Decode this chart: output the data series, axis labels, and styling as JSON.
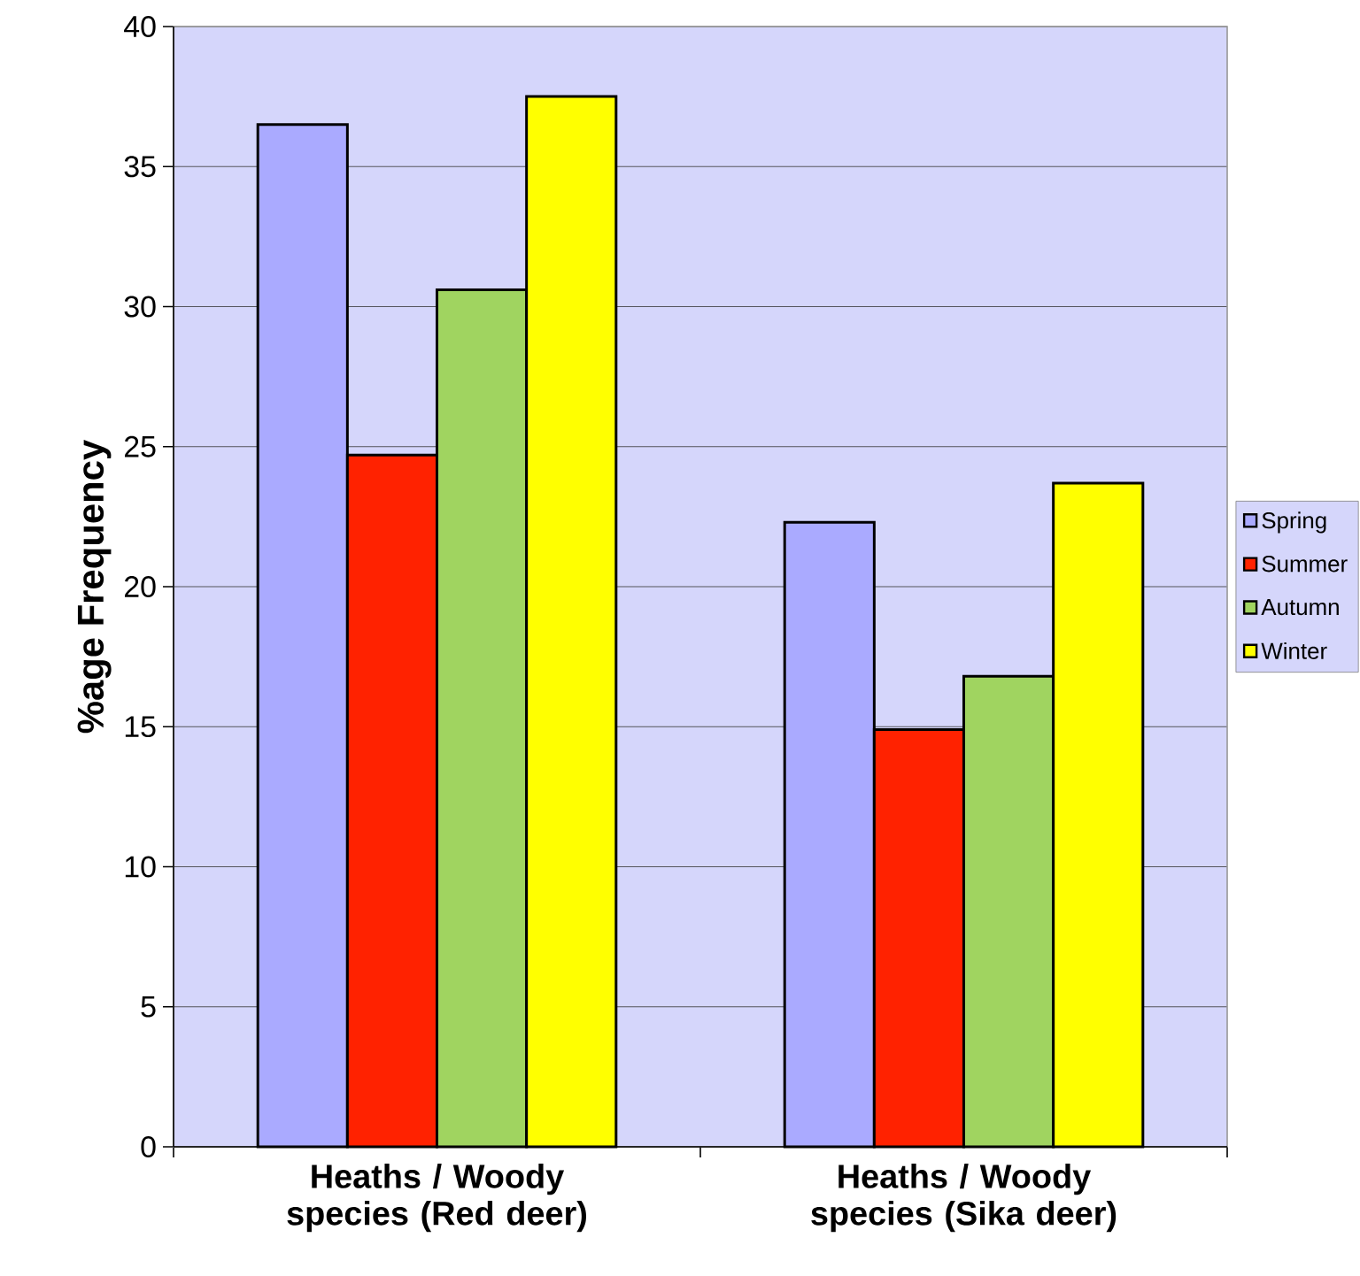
{
  "chart_data": {
    "type": "bar",
    "ylabel": "%age Frequency",
    "categories": [
      "Heaths / Woody species (Red deer)",
      "Heaths / Woody species (Sika deer)"
    ],
    "series": [
      {
        "name": "Spring",
        "color": "#aaaaff",
        "values": [
          36.5,
          22.3
        ]
      },
      {
        "name": "Summer",
        "color": "#ff2200",
        "values": [
          24.7,
          14.9
        ]
      },
      {
        "name": "Autumn",
        "color": "#a0d460",
        "values": [
          30.6,
          16.8
        ]
      },
      {
        "name": "Winter",
        "color": "#ffff00",
        "values": [
          37.5,
          23.7
        ]
      }
    ],
    "ylim": [
      0,
      40
    ],
    "yticks": [
      0,
      5,
      10,
      15,
      20,
      25,
      30,
      35,
      40
    ],
    "grid": "y",
    "legend": "right"
  }
}
